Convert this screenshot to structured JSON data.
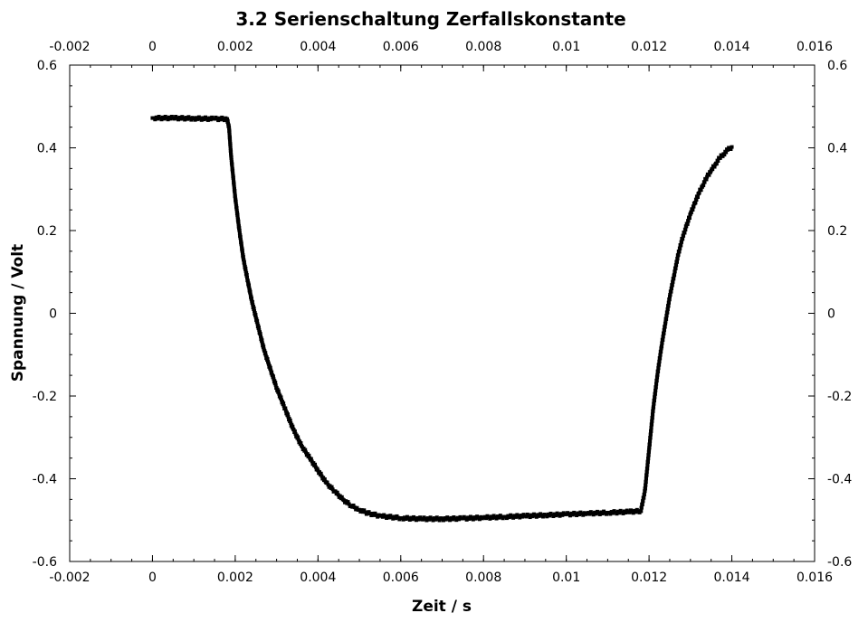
{
  "chart_data": {
    "type": "scatter",
    "title": "3.2 Serienschaltung Zerfallskonstante",
    "xlabel": "Zeit / s",
    "ylabel": "Spannung / Volt",
    "xlim": [
      -0.002,
      0.016
    ],
    "ylim": [
      -0.6,
      0.6
    ],
    "x_ticks": [
      -0.002,
      0,
      0.002,
      0.004,
      0.006,
      0.008,
      0.01,
      0.012,
      0.014,
      0.016
    ],
    "x_tick_labels": [
      "-0.002",
      "0",
      "0.002",
      "0.004",
      "0.006",
      "0.008",
      "0.01",
      "0.012",
      "0.014",
      "0.016"
    ],
    "y_ticks": [
      -0.6,
      -0.4,
      -0.2,
      0,
      0.2,
      0.4,
      0.6
    ],
    "y_tick_labels": [
      "-0.6",
      "-0.4",
      "-0.2",
      "0",
      "0.2",
      "0.4",
      "0.6"
    ],
    "grid": false,
    "marker_color": "#000000",
    "series": [
      {
        "x": [
          0,
          0.0005,
          0.001,
          0.0015,
          0.0018,
          0.00185,
          0.0019,
          0.002,
          0.0021,
          0.0022,
          0.0023,
          0.0024,
          0.0025,
          0.0026,
          0.0027,
          0.0028,
          0.0029,
          0.003,
          0.0032,
          0.0034,
          0.0036,
          0.0038,
          0.004,
          0.0042,
          0.0044,
          0.0046,
          0.0048,
          0.005,
          0.0052,
          0.0055,
          0.006,
          0.0065,
          0.007,
          0.0075,
          0.008,
          0.0085,
          0.009,
          0.0095,
          0.01,
          0.0105,
          0.011,
          0.0115,
          0.0118,
          0.0119,
          0.012,
          0.0121,
          0.0122,
          0.0123,
          0.0124,
          0.0125,
          0.0126,
          0.0127,
          0.0128,
          0.0129,
          0.013,
          0.0131,
          0.0132,
          0.0133,
          0.0134,
          0.0135,
          0.0136,
          0.0137,
          0.0138,
          0.0139,
          0.014
        ],
        "y": [
          0.472,
          0.472,
          0.471,
          0.47,
          0.47,
          0.45,
          0.38,
          0.28,
          0.2,
          0.13,
          0.08,
          0.03,
          -0.01,
          -0.05,
          -0.09,
          -0.12,
          -0.15,
          -0.18,
          -0.23,
          -0.28,
          -0.32,
          -0.35,
          -0.38,
          -0.41,
          -0.43,
          -0.45,
          -0.465,
          -0.475,
          -0.483,
          -0.49,
          -0.495,
          -0.497,
          -0.497,
          -0.496,
          -0.494,
          -0.492,
          -0.49,
          -0.488,
          -0.486,
          -0.484,
          -0.482,
          -0.48,
          -0.478,
          -0.43,
          -0.33,
          -0.23,
          -0.15,
          -0.08,
          -0.02,
          0.04,
          0.09,
          0.14,
          0.18,
          0.21,
          0.24,
          0.265,
          0.29,
          0.31,
          0.33,
          0.345,
          0.36,
          0.375,
          0.385,
          0.395,
          0.402
        ]
      }
    ]
  }
}
